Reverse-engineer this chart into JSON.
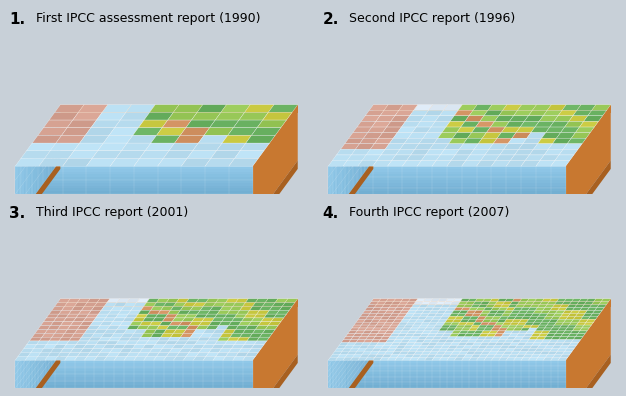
{
  "background": "#c8d0d8",
  "panels": [
    {
      "num": "1.",
      "title": "First IPCC assessment report (1990)",
      "gcols": 10,
      "grows": 8
    },
    {
      "num": "2.",
      "title": "Second IPCC report (1996)",
      "gcols": 16,
      "grows": 11
    },
    {
      "num": "3.",
      "title": "Third IPCC report (2001)",
      "gcols": 24,
      "grows": 16
    },
    {
      "num": "4.",
      "title": "Fourth IPCC report (2007)",
      "gcols": 32,
      "grows": 21
    }
  ],
  "ocean_top": "#b8ddf0",
  "ocean_top2": "#c8e8f8",
  "ocean_front_top": "#90c8e8",
  "ocean_front_bot": "#5090b8",
  "land_green": "#68b060",
  "land_lgreen": "#98c858",
  "land_yellow": "#c8c840",
  "land_orange": "#d09060",
  "land_snow": "#dce8f4",
  "land_pink": "#d4a090",
  "soil_top": "#c87830",
  "soil_side": "#a86020",
  "grid_line": "#ffffff",
  "title_num_size": 11,
  "title_text_size": 9
}
